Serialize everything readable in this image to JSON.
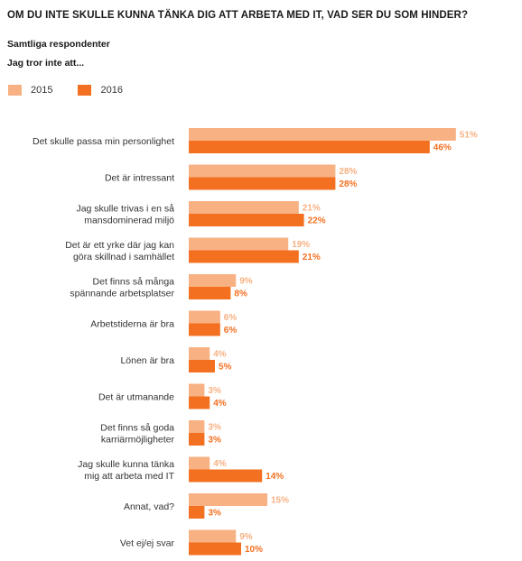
{
  "header": {
    "title": "OM DU INTE SKULLE KUNNA TÄNKA DIG ATT ARBETA MED IT, VAD SER DU SOM HINDER?",
    "subtitle1": "Samtliga respondenter",
    "subtitle2": "Jag tror inte att..."
  },
  "colors": {
    "s2015": "#f7b183",
    "s2016": "#f37021"
  },
  "chart_data": {
    "type": "bar",
    "orientation": "horizontal",
    "categories": [
      [
        "Det skulle passa min personlighet"
      ],
      [
        "Det är intressant"
      ],
      [
        "Jag skulle trivas i en så",
        "mansdominerad miljö"
      ],
      [
        "Det är ett yrke där jag kan",
        "göra skillnad i samhället"
      ],
      [
        "Det finns så många",
        "spännande arbetsplatser"
      ],
      [
        "Arbetstiderna är bra"
      ],
      [
        "Lönen är bra"
      ],
      [
        "Det är utmanande"
      ],
      [
        "Det finns så goda",
        "karriärmöjligheter"
      ],
      [
        "Jag skulle kunna tänka",
        "mig att arbeta med IT"
      ],
      [
        "Annat, vad?"
      ],
      [
        "Vet ej/ej svar"
      ]
    ],
    "series": [
      {
        "name": "2015",
        "values": [
          51,
          28,
          21,
          19,
          9,
          6,
          4,
          3,
          3,
          4,
          15,
          9
        ]
      },
      {
        "name": "2016",
        "values": [
          46,
          28,
          22,
          21,
          8,
          6,
          5,
          4,
          3,
          14,
          3,
          10
        ]
      }
    ],
    "value_suffix": "%",
    "legend_position": "top-left",
    "grid": false
  }
}
